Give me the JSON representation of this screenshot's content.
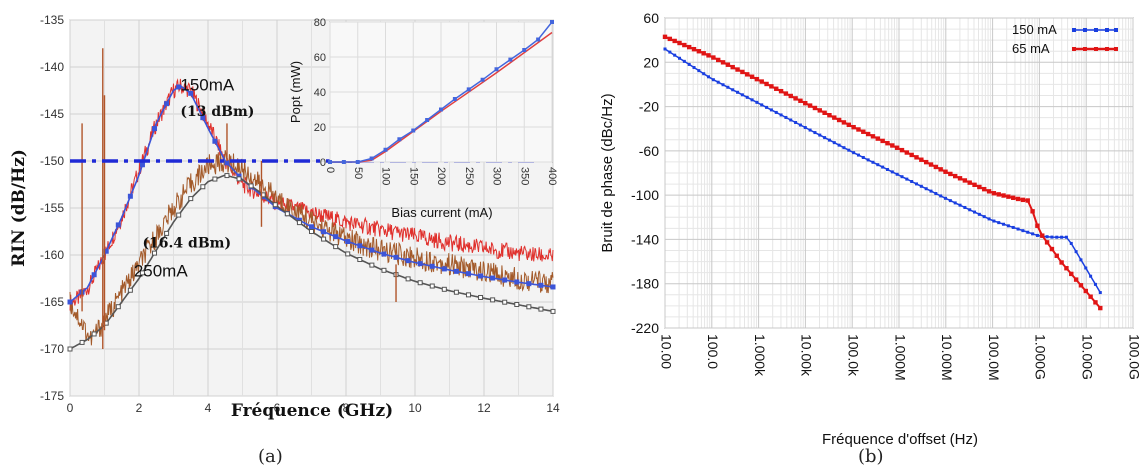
{
  "figure": {
    "caption_a": "(a)",
    "caption_b": "(b)"
  },
  "chart_data": [
    {
      "id": "a",
      "type": "line",
      "xlabel": "Fréquence (GHz)",
      "ylabel": "RIN (dB/Hz)",
      "xlim": [
        0,
        14
      ],
      "ylim": [
        -175,
        -135
      ],
      "xticks": [
        0,
        2,
        4,
        6,
        8,
        10,
        12,
        14
      ],
      "yticks": [
        -175,
        -170,
        -165,
        -160,
        -155,
        -150,
        -145,
        -140,
        -135
      ],
      "grid": true,
      "threshold_line": {
        "y": -150,
        "color": "#1f2ad6",
        "style": "dash-dot"
      },
      "annotations": [
        {
          "text": "150mA",
          "x": 3.2,
          "y": -142.5
        },
        {
          "text": "(13 dBm)",
          "x": 3.2,
          "y": -145.2
        },
        {
          "text": "(16.4 dBm)",
          "x": 2.1,
          "y": -159.2
        },
        {
          "text": "250mA",
          "x": 1.85,
          "y": -162.3
        }
      ],
      "series": [
        {
          "color": "#e0302c",
          "style": "noisy",
          "x": [
            0,
            0.3,
            0.6,
            1,
            1.5,
            2,
            2.5,
            3,
            3.2,
            3.5,
            4,
            4.5,
            5,
            5.5,
            6,
            7,
            8,
            9,
            10,
            11,
            12,
            13,
            14
          ],
          "y": [
            -165,
            -164.5,
            -163,
            -160,
            -156,
            -151,
            -146,
            -142.5,
            -142,
            -142.5,
            -146,
            -150,
            -152.5,
            -153.5,
            -154.5,
            -155.5,
            -156.5,
            -157.3,
            -158,
            -158.7,
            -159.3,
            -159.8,
            -160.2
          ]
        },
        {
          "color": "#a35a2a",
          "style": "noisy",
          "x": [
            0,
            0.3,
            0.6,
            1,
            1.5,
            2,
            2.5,
            3,
            3.5,
            4,
            4.5,
            5,
            5.5,
            6,
            7,
            8,
            9,
            10,
            11,
            12,
            13,
            14
          ],
          "y": [
            -165,
            -167,
            -169,
            -167,
            -164,
            -161,
            -158,
            -155,
            -152.5,
            -150.5,
            -150,
            -150.8,
            -152.5,
            -154,
            -156.5,
            -158.3,
            -159.5,
            -160.3,
            -161,
            -161.8,
            -162.5,
            -163
          ]
        },
        {
          "color": "#3c55d8",
          "style": "markers",
          "x": [
            0,
            0.5,
            1,
            1.5,
            2,
            2.5,
            3,
            3.2,
            3.5,
            4,
            4.5,
            5,
            6,
            7,
            8,
            9,
            10,
            11,
            12,
            13,
            14
          ],
          "y": [
            -165,
            -163.5,
            -160,
            -156,
            -151.5,
            -146,
            -142.5,
            -142,
            -142.8,
            -146.5,
            -150,
            -152,
            -155,
            -157,
            -158.5,
            -159.8,
            -160.8,
            -161.6,
            -162.3,
            -162.9,
            -163.4
          ]
        },
        {
          "color": "#555555",
          "style": "markers",
          "x": [
            0,
            0.5,
            1,
            1.5,
            2,
            2.5,
            3,
            3.5,
            4,
            4.5,
            5,
            5.5,
            6,
            7,
            8,
            9,
            10,
            11,
            12,
            13,
            14
          ],
          "y": [
            -170,
            -169,
            -167.5,
            -165,
            -162.5,
            -159.5,
            -156.5,
            -154,
            -152.2,
            -151.5,
            -152,
            -153.3,
            -154.8,
            -157.5,
            -159.8,
            -161.5,
            -162.8,
            -163.8,
            -164.6,
            -165.3,
            -166
          ]
        }
      ],
      "inset": {
        "type": "line",
        "xlabel": "Bias current (mA)",
        "ylabel": "Popt (mW)",
        "xlim": [
          0,
          400
        ],
        "ylim": [
          0,
          80
        ],
        "xticks": [
          0,
          50,
          100,
          150,
          200,
          250,
          300,
          350,
          400
        ],
        "yticks": [
          0,
          20,
          40,
          60,
          80
        ],
        "series": [
          {
            "color": "#e04040",
            "x": [
              0,
              50,
              75,
              100,
              200,
              300,
              400
            ],
            "y": [
              0,
              0,
              1,
              6,
              29,
              51,
              74
            ]
          },
          {
            "color": "#4466dd",
            "markers": true,
            "x": [
              0,
              25,
              50,
              75,
              100,
              125,
              150,
              175,
              200,
              225,
              250,
              275,
              300,
              325,
              350,
              375,
              400
            ],
            "y": [
              0,
              0,
              0,
              2,
              7,
              13,
              18,
              24,
              30,
              36,
              41.5,
              47,
              53,
              58.5,
              64,
              70,
              80
            ]
          }
        ]
      }
    },
    {
      "id": "b",
      "type": "line",
      "xlabel": "Fréquence d'offset (Hz)",
      "ylabel": "Bruit de phase (dBc/Hz)",
      "xscale": "log",
      "xlim": [
        10,
        100000000000
      ],
      "ylim": [
        -220,
        60
      ],
      "xtick_values": [
        10,
        100,
        1000,
        10000,
        100000,
        1000000,
        10000000,
        100000000,
        1000000000,
        10000000000,
        100000000000
      ],
      "xtick_labels": [
        "10.00",
        "100.0",
        "1.000k",
        "10.00k",
        "100.0k",
        "1.000M",
        "10.00M",
        "100.0M",
        "1.000G",
        "10.00G",
        "100.0G"
      ],
      "yticks": [
        60,
        20,
        -20,
        -60,
        -100,
        -140,
        -180,
        -220
      ],
      "grid": true,
      "legend": "top-right",
      "series": [
        {
          "name": "150 mA",
          "color": "#1a3fe0",
          "x": [
            10,
            100,
            1000,
            10000,
            100000,
            1000000,
            10000000,
            100000000,
            1000000000,
            2000000000,
            4000000000,
            20000000000
          ],
          "y": [
            32,
            5,
            -17,
            -39,
            -61,
            -82,
            -103,
            -123,
            -137,
            -138,
            -138,
            -188
          ]
        },
        {
          "name": "65 mA",
          "color": "#e01515",
          "x": [
            10,
            100,
            1000,
            10000,
            100000,
            1000000,
            10000000,
            100000000,
            400000000,
            600000000,
            1000000000,
            3000000000,
            20000000000
          ],
          "y": [
            43,
            25,
            4,
            -17,
            -38,
            -58,
            -79,
            -98,
            -104,
            -105,
            -133,
            -161,
            -202
          ]
        }
      ]
    }
  ]
}
